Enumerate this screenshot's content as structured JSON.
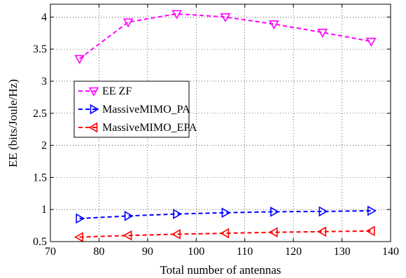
{
  "chart_data": {
    "type": "line",
    "title": "",
    "xlabel": "Total number of antennas",
    "ylabel": "EE (bits/Joule/Hz)",
    "xlim": [
      70,
      140
    ],
    "ylim": [
      0.5,
      4.2
    ],
    "xticks": [
      70,
      80,
      90,
      100,
      110,
      120,
      130,
      140
    ],
    "yticks": [
      0.5,
      1,
      1.5,
      2,
      2.5,
      3,
      3.5,
      4
    ],
    "grid": true,
    "legend_position": "left",
    "x": [
      76,
      86,
      96,
      106,
      116,
      126,
      136
    ],
    "series": [
      {
        "name": "EE ZF",
        "color": "#ff00ff",
        "marker": "triangle-down",
        "values": [
          3.35,
          3.92,
          4.05,
          4.0,
          3.89,
          3.76,
          3.62
        ]
      },
      {
        "name": "MassiveMIMO_PA",
        "color": "#0000ff",
        "marker": "triangle-right",
        "values": [
          0.86,
          0.9,
          0.93,
          0.95,
          0.965,
          0.97,
          0.98
        ]
      },
      {
        "name": "MassiveMIMO_EPA",
        "color": "#ff0000",
        "marker": "triangle-left",
        "values": [
          0.57,
          0.595,
          0.615,
          0.63,
          0.645,
          0.655,
          0.665
        ]
      }
    ]
  }
}
